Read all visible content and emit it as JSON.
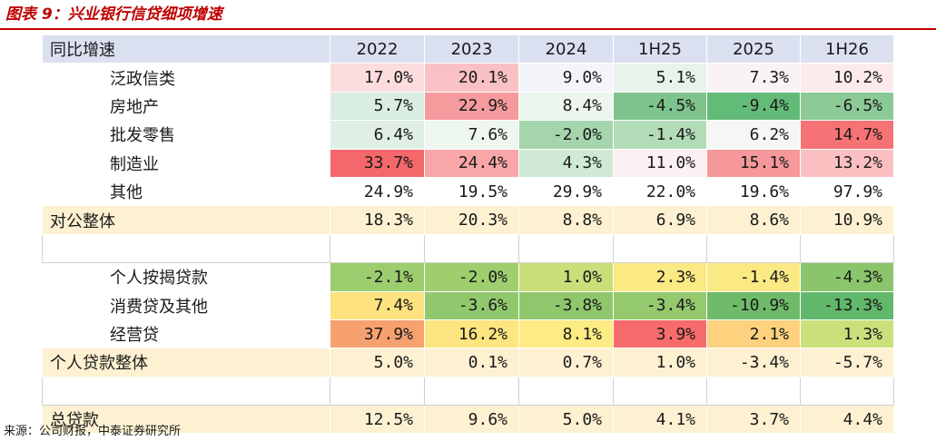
{
  "title": "图表 9：兴业银行信贷细项增速",
  "source": "来源：公司财报，中泰证券研究所",
  "chart_data": {
    "type": "table",
    "header_label": "同比增速",
    "columns": [
      "2022",
      "2023",
      "2024",
      "1H25",
      "2025",
      "1H26"
    ],
    "rows": [
      {
        "label": "泛政信类",
        "kind": "sub",
        "values": [
          "17.0%",
          "20.1%",
          "9.0%",
          "5.1%",
          "7.3%",
          "10.2%"
        ],
        "colors": [
          "#fcdcdd",
          "#f9c1c3",
          "#f4f4fa",
          "#e8f3eb",
          "#faf3f6",
          "#fcebed"
        ]
      },
      {
        "label": "房地产",
        "kind": "sub",
        "values": [
          "5.7%",
          "22.9%",
          "8.4%",
          "-4.5%",
          "-9.4%",
          "-6.5%"
        ],
        "colors": [
          "#d9ede0",
          "#f59a9d",
          "#ecf5ee",
          "#7dc38b",
          "#63bb78",
          "#8bc996"
        ]
      },
      {
        "label": "批发零售",
        "kind": "sub",
        "values": [
          "6.4%",
          "7.6%",
          "-2.0%",
          "-1.4%",
          "6.2%",
          "14.7%"
        ],
        "colors": [
          "#e0efe4",
          "#eef6f0",
          "#a5d5ad",
          "#b2dbb8",
          "#f4f7f4",
          "#f77274"
        ]
      },
      {
        "label": "制造业",
        "kind": "sub",
        "values": [
          "33.7%",
          "24.4%",
          "4.3%",
          "11.0%",
          "15.1%",
          "13.2%"
        ],
        "colors": [
          "#f4676a",
          "#f9a6a8",
          "#cfe9d5",
          "#fbf0f2",
          "#f6989b",
          "#fcbfc1"
        ]
      },
      {
        "label": "其他",
        "kind": "plain",
        "values": [
          "24.9%",
          "19.5%",
          "29.9%",
          "22.0%",
          "19.6%",
          "97.9%"
        ],
        "colors": [
          "#ffffff",
          "#ffffff",
          "#ffffff",
          "#ffffff",
          "#ffffff",
          "#ffffff"
        ]
      },
      {
        "label": "对公整体",
        "kind": "total",
        "values": [
          "18.3%",
          "20.3%",
          "8.8%",
          "6.9%",
          "8.6%",
          "10.9%"
        ],
        "colors": [
          "#fdf1d2",
          "#fdf1d2",
          "#fdf1d2",
          "#fdf1d2",
          "#fdf1d2",
          "#fdf1d2"
        ]
      },
      {
        "label": "",
        "kind": "blank",
        "values": [
          "",
          "",
          "",
          "",
          "",
          ""
        ],
        "colors": [
          "#ffffff",
          "#ffffff",
          "#ffffff",
          "#ffffff",
          "#ffffff",
          "#ffffff"
        ]
      },
      {
        "label": "个人按揭贷款",
        "kind": "sub",
        "values": [
          "-2.1%",
          "-2.0%",
          "1.0%",
          "2.3%",
          "-1.4%",
          "-4.3%"
        ],
        "colors": [
          "#9ccd6e",
          "#9fce6f",
          "#c9df7a",
          "#fbe983",
          "#fbe983",
          "#8ac56b"
        ]
      },
      {
        "label": "消费贷及其他",
        "kind": "sub",
        "values": [
          "7.4%",
          "-3.6%",
          "-3.8%",
          "-3.4%",
          "-10.9%",
          "-13.3%"
        ],
        "colors": [
          "#fde27e",
          "#92c86d",
          "#90c76c",
          "#95c96d",
          "#6fbb69",
          "#62b86a"
        ]
      },
      {
        "label": "经营贷",
        "kind": "sub",
        "values": [
          "37.9%",
          "16.2%",
          "8.1%",
          "3.9%",
          "2.1%",
          "1.3%"
        ],
        "colors": [
          "#f7a16f",
          "#fde581",
          "#fdeb84",
          "#f86b6c",
          "#fdd17e",
          "#cbe07b"
        ]
      },
      {
        "label": "个人贷款整体",
        "kind": "total",
        "values": [
          "5.0%",
          "0.1%",
          "0.7%",
          "1.0%",
          "-3.4%",
          "-5.7%"
        ],
        "colors": [
          "#fdf1d2",
          "#fdf1d2",
          "#fdf1d2",
          "#fdf1d2",
          "#fdf1d2",
          "#fdf1d2"
        ]
      },
      {
        "label": "",
        "kind": "blank",
        "values": [
          "",
          "",
          "",
          "",
          "",
          ""
        ],
        "colors": [
          "#ffffff",
          "#ffffff",
          "#ffffff",
          "#ffffff",
          "#ffffff",
          "#ffffff"
        ]
      },
      {
        "label": "总贷款",
        "kind": "total",
        "values": [
          "12.5%",
          "9.6%",
          "5.0%",
          "4.1%",
          "3.7%",
          "4.4%"
        ],
        "colors": [
          "#fdf1d2",
          "#fdf1d2",
          "#fdf1d2",
          "#fdf1d2",
          "#fdf1d2",
          "#fdf1d2"
        ]
      }
    ]
  }
}
